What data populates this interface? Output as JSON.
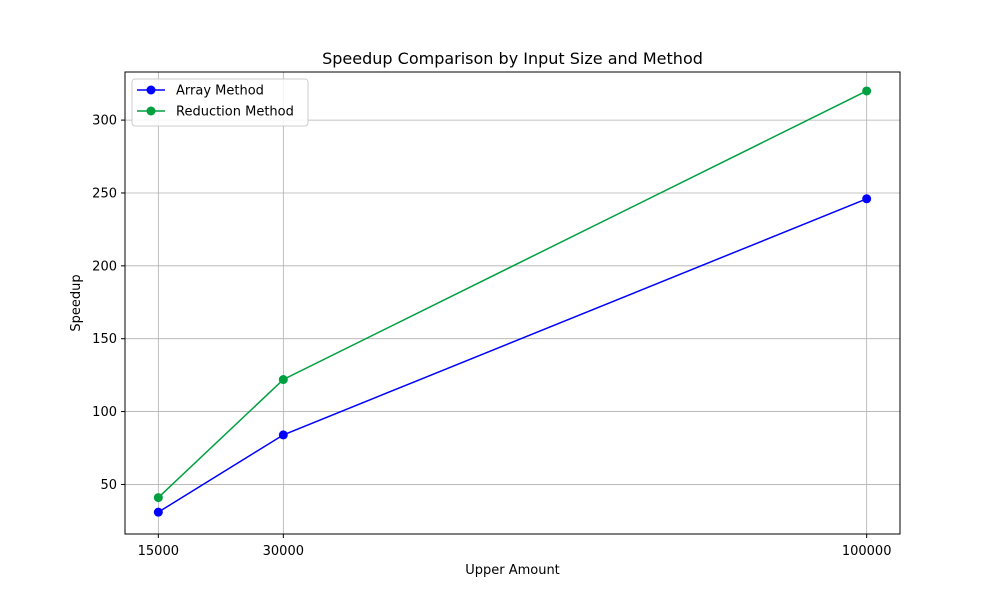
{
  "chart_data": {
    "type": "line",
    "title": "Speedup Comparison by Input Size and Method",
    "xlabel": "Upper Amount",
    "ylabel": "Speedup",
    "x": [
      15000,
      30000,
      100000
    ],
    "x_ticks": [
      15000,
      30000,
      100000
    ],
    "y_ticks": [
      50,
      100,
      150,
      200,
      250,
      300
    ],
    "xlim": [
      11000,
      104000
    ],
    "ylim": [
      16,
      333
    ],
    "grid": true,
    "legend_position": "top-left",
    "series": [
      {
        "name": "Array Method",
        "color": "#0000ff",
        "values": [
          31,
          84,
          246
        ]
      },
      {
        "name": "Reduction Method",
        "color": "#00a040",
        "values": [
          41,
          122,
          320
        ]
      }
    ]
  }
}
